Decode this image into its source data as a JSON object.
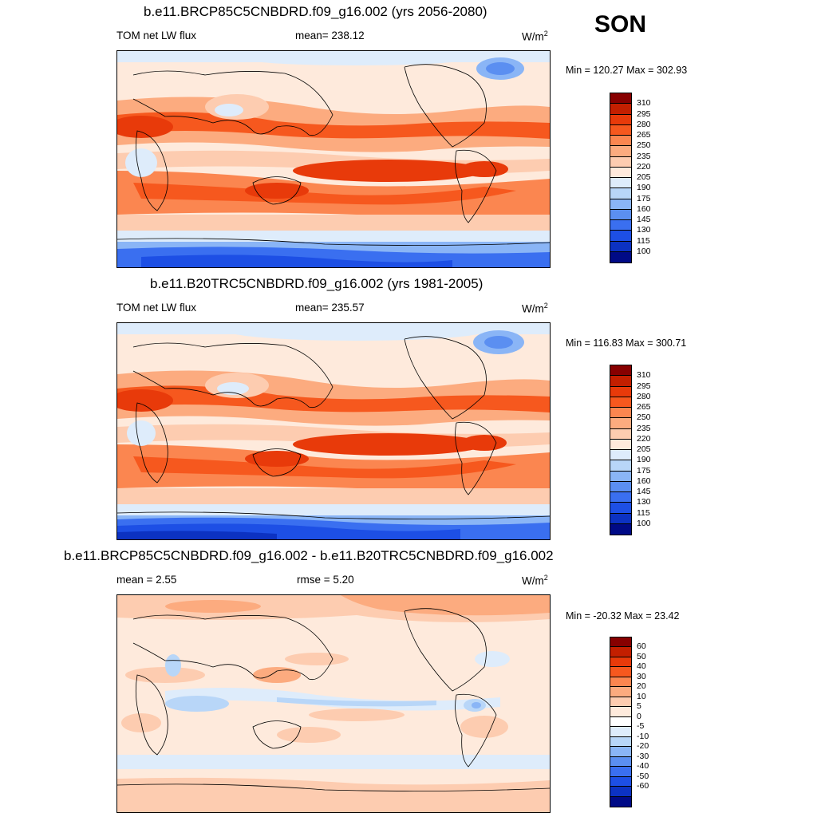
{
  "season": "SON",
  "panels": [
    {
      "title": "b.e11.BRCP85C5CNBDRD.f09_g16.002 (yrs 2056-2080)",
      "left": "TOM net LW flux",
      "mid": "mean= 238.12",
      "units_base": "W/m",
      "units_exp": "2",
      "minmax": "Min = 120.27 Max = 302.93",
      "colorbar": {
        "colors": [
          "#870000",
          "#c31f00",
          "#e83a0a",
          "#f6581e",
          "#fb8650",
          "#fcab7f",
          "#fdccb0",
          "#feeadc",
          "#deecfb",
          "#b8d6f8",
          "#8ab5f6",
          "#5b8ff1",
          "#3a6ff0",
          "#1d4fe5",
          "#0c32c2",
          "#000a86"
        ],
        "labels": [
          "310",
          "295",
          "280",
          "265",
          "250",
          "235",
          "220",
          "205",
          "190",
          "175",
          "160",
          "145",
          "130",
          "115",
          "100"
        ]
      }
    },
    {
      "title": "b.e11.B20TRC5CNBDRD.f09_g16.002 (yrs 1981-2005)",
      "left": "TOM net LW flux",
      "mid": "mean= 235.57",
      "units_base": "W/m",
      "units_exp": "2",
      "minmax": "Min = 116.83 Max = 300.71",
      "colorbar": {
        "colors": [
          "#870000",
          "#c31f00",
          "#e83a0a",
          "#f6581e",
          "#fb8650",
          "#fcab7f",
          "#fdccb0",
          "#feeadc",
          "#deecfb",
          "#b8d6f8",
          "#8ab5f6",
          "#5b8ff1",
          "#3a6ff0",
          "#1d4fe5",
          "#0c32c2",
          "#000a86"
        ],
        "labels": [
          "310",
          "295",
          "280",
          "265",
          "250",
          "235",
          "220",
          "205",
          "190",
          "175",
          "160",
          "145",
          "130",
          "115",
          "100"
        ]
      }
    },
    {
      "title": "b.e11.BRCP85C5CNBDRD.f09_g16.002 - b.e11.B20TRC5CNBDRD.f09_g16.002",
      "left": "mean =   2.55",
      "mid": "rmse =   5.20",
      "units_base": "W/m",
      "units_exp": "2",
      "minmax": "Min = -20.32 Max =  23.42",
      "colorbar": {
        "colors": [
          "#870000",
          "#c31f00",
          "#e83a0a",
          "#f6581e",
          "#fb8650",
          "#fcab7f",
          "#fdccb0",
          "#feeadc",
          "#ffffff",
          "#deecfb",
          "#b8d6f8",
          "#8ab5f6",
          "#5b8ff1",
          "#3a6ff0",
          "#1d4fe5",
          "#0c32c2",
          "#000a86"
        ],
        "labels": [
          "60",
          "50",
          "40",
          "30",
          "20",
          "10",
          "5",
          "0",
          "-5",
          "-10",
          "-20",
          "-30",
          "-40",
          "-50",
          "-60"
        ]
      }
    }
  ]
}
